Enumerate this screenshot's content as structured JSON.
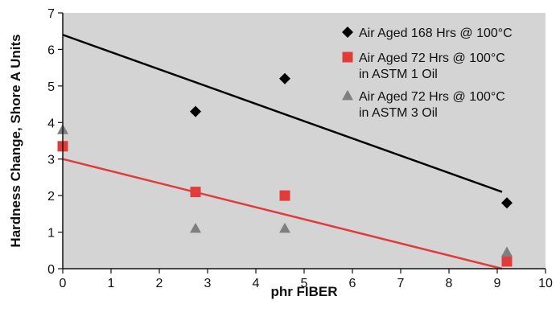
{
  "chart_data": {
    "type": "scatter",
    "title": "",
    "xlabel": "phr FIBER",
    "ylabel": "Hardness Change, Shore A Units",
    "xlim": [
      0,
      10
    ],
    "ylim": [
      0,
      7
    ],
    "xticks": [
      0,
      1,
      2,
      3,
      4,
      5,
      6,
      7,
      8,
      9,
      10
    ],
    "yticks": [
      0,
      1,
      2,
      3,
      4,
      5,
      6,
      7
    ],
    "grid": false,
    "background_color": "#d4d4d4",
    "legend_position": "top-right",
    "series": [
      {
        "name_lines": [
          "Air Aged 168 Hrs @ 100°C"
        ],
        "marker": "diamond",
        "color": "#000000",
        "points": [
          [
            2.75,
            4.3
          ],
          [
            4.6,
            5.2
          ],
          [
            9.2,
            1.8
          ]
        ],
        "trend_line": [
          [
            0,
            6.4
          ],
          [
            9.1,
            2.1
          ]
        ]
      },
      {
        "name_lines": [
          "Air Aged 72 Hrs @ 100°C",
          "in ASTM 1 Oil"
        ],
        "marker": "square",
        "color": "#e03c3c",
        "points": [
          [
            0,
            3.35
          ],
          [
            2.75,
            2.1
          ],
          [
            4.6,
            2.0
          ],
          [
            9.2,
            0.2
          ]
        ],
        "trend_line": [
          [
            0,
            3.0
          ],
          [
            9.1,
            0.0
          ]
        ]
      },
      {
        "name_lines": [
          "Air Aged 72 Hrs @ 100°C",
          "in ASTM 3 Oil"
        ],
        "marker": "triangle",
        "color": "#7f7f7f",
        "points": [
          [
            0,
            3.8
          ],
          [
            2.75,
            1.1
          ],
          [
            4.6,
            1.1
          ],
          [
            9.2,
            0.45
          ]
        ]
      }
    ]
  }
}
